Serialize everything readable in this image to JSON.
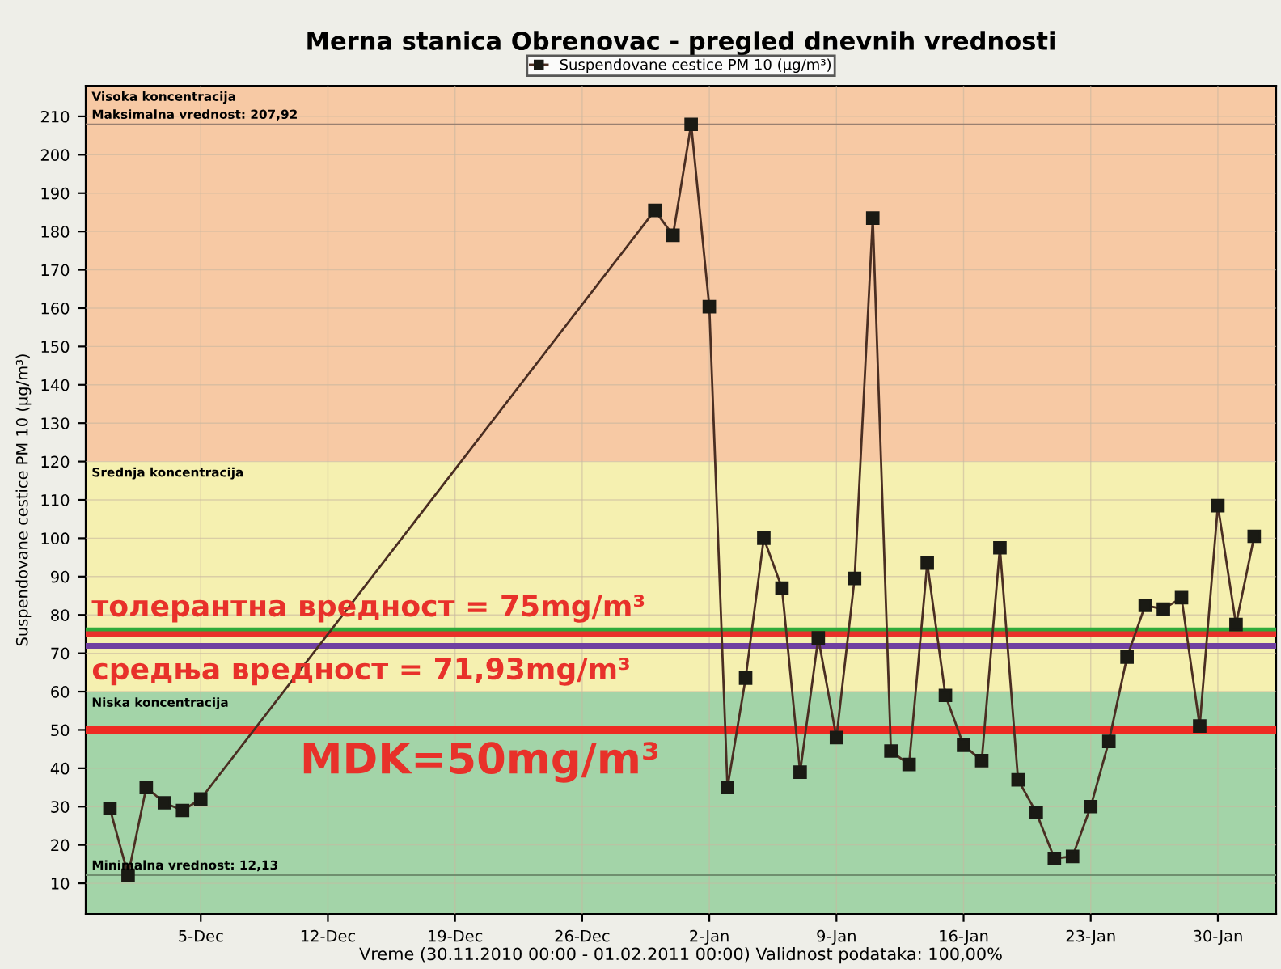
{
  "chart_data": {
    "type": "line",
    "title": "Merna stanica Obrenovac - pregled dnevnih vrednosti",
    "xlabel": "Vreme (30.11.2010 00:00 - 01.02.2011 00:00) Validnost podataka: 100,00%",
    "ylabel": "Suspendovane cestice PM 10 (μg/m³)",
    "x": [
      "2010-11-30",
      "2010-12-01",
      "2010-12-02",
      "2010-12-03",
      "2010-12-04",
      "2010-12-05",
      "2010-12-30",
      "2010-12-31",
      "2011-01-01",
      "2011-01-02",
      "2011-01-03",
      "2011-01-04",
      "2011-01-05",
      "2011-01-06",
      "2011-01-07",
      "2011-01-08",
      "2011-01-09",
      "2011-01-10",
      "2011-01-11",
      "2011-01-12",
      "2011-01-13",
      "2011-01-14",
      "2011-01-15",
      "2011-01-16",
      "2011-01-17",
      "2011-01-18",
      "2011-01-19",
      "2011-01-20",
      "2011-01-21",
      "2011-01-22",
      "2011-01-23",
      "2011-01-24",
      "2011-01-25",
      "2011-01-26",
      "2011-01-27",
      "2011-01-28",
      "2011-01-29",
      "2011-01-30",
      "2011-01-31",
      "2011-02-01"
    ],
    "series": [
      {
        "name": "Suspendovane cestice PM 10 (μg/m³)",
        "color": "#4a2e22",
        "values": [
          29.5,
          12.13,
          35,
          31,
          29,
          32,
          185.5,
          179,
          207.92,
          160.4,
          35,
          63.5,
          100,
          87,
          39,
          74,
          48,
          89.5,
          183.5,
          44.5,
          41,
          93.5,
          59,
          46,
          42,
          97.5,
          37,
          28.5,
          16.5,
          17,
          30,
          47,
          69,
          82.5,
          81.5,
          84.5,
          51,
          108.5,
          77.5,
          100.5
        ]
      }
    ],
    "xlim": [
      "2010-11-28T16:00",
      "2011-02-02T05:00"
    ],
    "xticks": [
      {
        "value": "2010-12-05",
        "label": "5-Dec"
      },
      {
        "value": "2010-12-12",
        "label": "12-Dec"
      },
      {
        "value": "2010-12-19",
        "label": "19-Dec"
      },
      {
        "value": "2010-12-26",
        "label": "26-Dec"
      },
      {
        "value": "2011-01-02",
        "label": "2-Jan"
      },
      {
        "value": "2011-01-09",
        "label": "9-Jan"
      },
      {
        "value": "2011-01-16",
        "label": "16-Jan"
      },
      {
        "value": "2011-01-23",
        "label": "23-Jan"
      },
      {
        "value": "2011-01-30",
        "label": "30-Jan"
      }
    ],
    "ylim": [
      2,
      218
    ],
    "yticks": [
      10,
      20,
      30,
      40,
      50,
      60,
      70,
      80,
      90,
      100,
      110,
      120,
      130,
      140,
      150,
      160,
      170,
      180,
      190,
      200,
      210
    ],
    "bands": [
      {
        "axis": "y",
        "from": 2,
        "to": 60,
        "label": "Niska koncentracija",
        "color": "#a3d4a8"
      },
      {
        "axis": "y",
        "from": 60,
        "to": 120,
        "label": "Srednja koncentracija",
        "color": "#f5f0b0"
      },
      {
        "axis": "y",
        "from": 120,
        "to": 218,
        "label": "Visoka koncentracija",
        "color": "#f7c9a4"
      }
    ],
    "ref_lines": [
      {
        "axis": "y",
        "value": 207.92,
        "label": "Maksimalna vrednost: 207,92",
        "color": "#9a8070"
      },
      {
        "axis": "y",
        "value": 12.13,
        "label": "Minimalna vrednost: 12,13",
        "color": "#6f8f6f"
      },
      {
        "axis": "y",
        "value": 76,
        "color": "#2eaa3a"
      },
      {
        "axis": "y",
        "value": 75,
        "label": "толерантна вредност = 75mg/m³",
        "color": "#e8312a"
      },
      {
        "axis": "y",
        "value": 71.93,
        "label": "средња вредност = 71,93mg/m³",
        "color": "#7040a0"
      },
      {
        "axis": "y",
        "value": 50,
        "label": "MDK=50mg/m³",
        "color": "#ee2a22"
      }
    ],
    "grid": true,
    "legend": "top",
    "marker": "square",
    "line_style": "solid"
  }
}
